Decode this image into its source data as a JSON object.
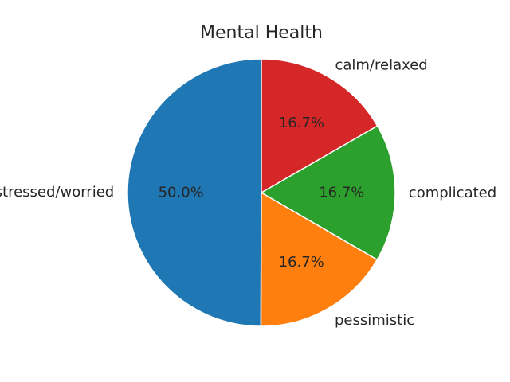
{
  "chart_data": {
    "type": "pie",
    "title": "Mental Health",
    "start_angle_deg": 90,
    "direction": "counterclockwise",
    "slices": [
      {
        "label": "stressed/worried",
        "value": 50.0,
        "pct_label": "50.0%",
        "color": "#1f77b4"
      },
      {
        "label": "pessimistic",
        "value": 16.7,
        "pct_label": "16.7%",
        "color": "#ff7f0e"
      },
      {
        "label": "complicated",
        "value": 16.7,
        "pct_label": "16.7%",
        "color": "#2ca02c"
      },
      {
        "label": "calm/relaxed",
        "value": 16.7,
        "pct_label": "16.7%",
        "color": "#d62728"
      }
    ]
  }
}
